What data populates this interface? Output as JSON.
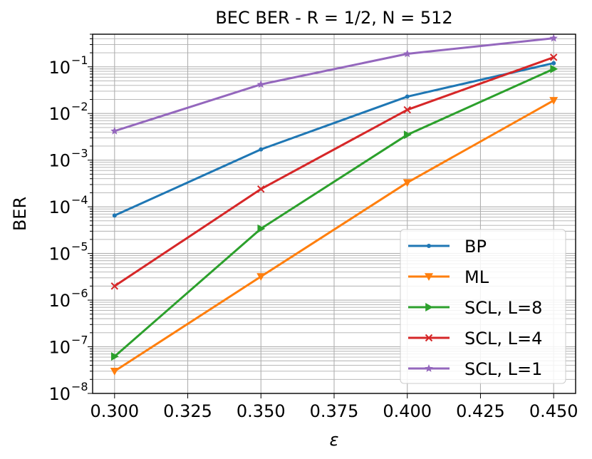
{
  "chart_data": {
    "type": "line",
    "title": "BEC BER - R = 1/2, N = 512",
    "xlabel": "ε",
    "ylabel": "BER",
    "xscale": "linear",
    "yscale": "log",
    "xlim": [
      0.2925,
      0.4575
    ],
    "ylim": [
      1e-08,
      0.5
    ],
    "grid": "major and minor",
    "legend_position": "lower-right",
    "x": [
      0.3,
      0.35,
      0.4,
      0.45
    ],
    "x_ticks": [
      "0.300",
      "0.325",
      "0.350",
      "0.375",
      "0.400",
      "0.425",
      "0.450"
    ],
    "y_ticks": [
      {
        "base": "10",
        "exp": "−8"
      },
      {
        "base": "10",
        "exp": "−7"
      },
      {
        "base": "10",
        "exp": "−6"
      },
      {
        "base": "10",
        "exp": "−5"
      },
      {
        "base": "10",
        "exp": "−4"
      },
      {
        "base": "10",
        "exp": "−3"
      },
      {
        "base": "10",
        "exp": "−2"
      },
      {
        "base": "10",
        "exp": "−1"
      }
    ],
    "series": [
      {
        "name": "BP",
        "color": "#1f77b4",
        "marker": "point",
        "values": [
          6.5e-05,
          0.0017,
          0.023,
          0.12
        ]
      },
      {
        "name": "ML",
        "color": "#ff7f0e",
        "marker": "triangle-down",
        "values": [
          3e-08,
          3.2e-06,
          0.00033,
          0.019
        ]
      },
      {
        "name": "SCL, L=8",
        "color": "#2ca02c",
        "marker": "triangle-right",
        "values": [
          6.2e-08,
          3.4e-05,
          0.0035,
          0.09
        ]
      },
      {
        "name": "SCL, L=4",
        "color": "#d62728",
        "marker": "x",
        "values": [
          2e-06,
          0.00024,
          0.012,
          0.16
        ]
      },
      {
        "name": "SCL, L=1",
        "color": "#9467bd",
        "marker": "star",
        "values": [
          0.0042,
          0.042,
          0.19,
          0.41
        ]
      }
    ]
  }
}
